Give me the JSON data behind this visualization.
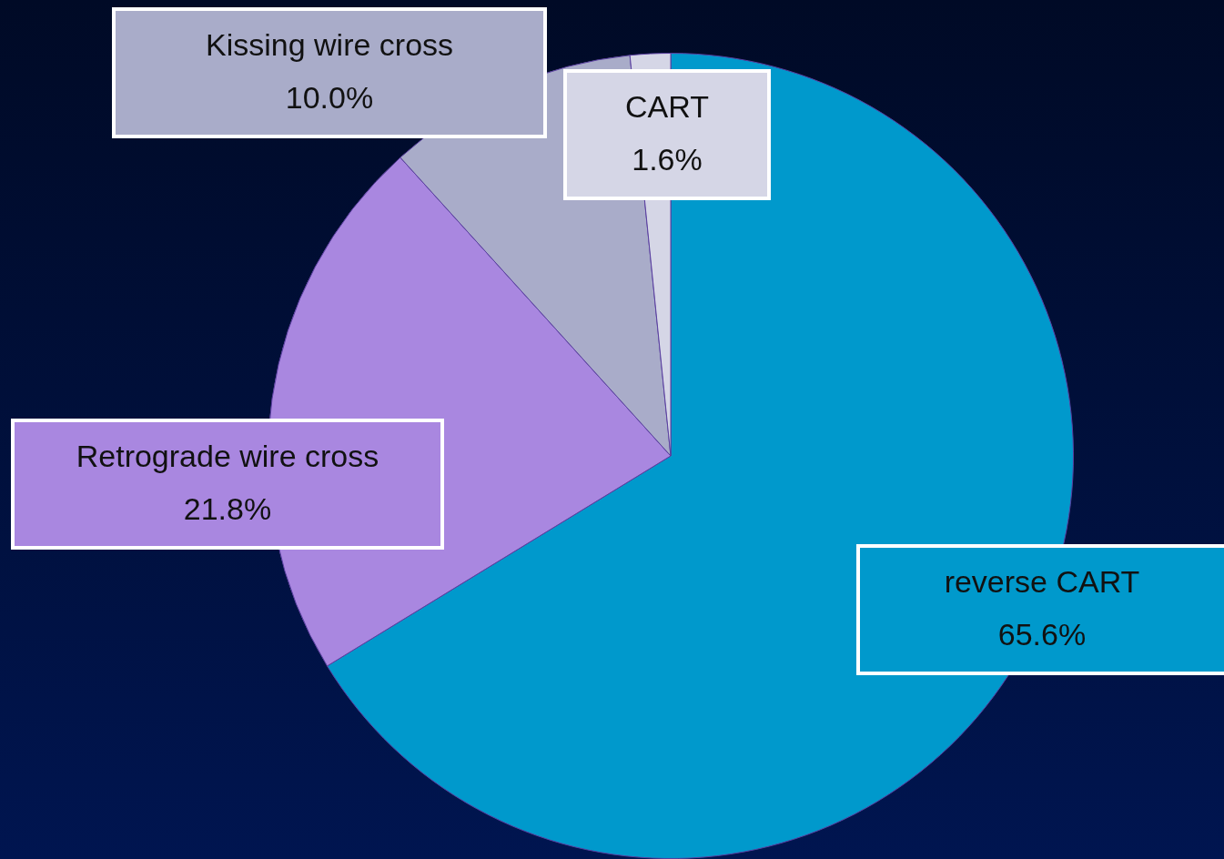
{
  "chart_data": {
    "type": "pie",
    "categories": [
      "reverse CART",
      "Retrograde wire cross",
      "Kissing wire cross",
      "CART"
    ],
    "values": [
      65.6,
      21.8,
      10.0,
      1.6
    ],
    "colors": [
      "#0099cc",
      "#a987e0",
      "#a9acc9",
      "#d5d6e6"
    ],
    "value_labels": [
      "65.6%",
      "21.8%",
      "10.0%",
      "1.6%"
    ],
    "legend": false
  }
}
